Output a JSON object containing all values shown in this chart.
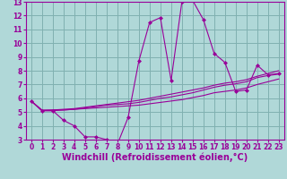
{
  "bg_color": "#b0d8d8",
  "grid_color": "#80b0b0",
  "line_color": "#990099",
  "marker_color": "#990099",
  "xlabel": "Windchill (Refroidissement éolien,°C)",
  "xlim": [
    -0.5,
    23.5
  ],
  "ylim": [
    3,
    13
  ],
  "xticks": [
    0,
    1,
    2,
    3,
    4,
    5,
    6,
    7,
    8,
    9,
    10,
    11,
    12,
    13,
    14,
    15,
    16,
    17,
    18,
    19,
    20,
    21,
    22,
    23
  ],
  "yticks": [
    3,
    4,
    5,
    6,
    7,
    8,
    9,
    10,
    11,
    12,
    13
  ],
  "line1_x": [
    0,
    1,
    2,
    3,
    4,
    5,
    6,
    7,
    8,
    9,
    10,
    11,
    12,
    13,
    14,
    15,
    16,
    17,
    18,
    19,
    20,
    21,
    22,
    23
  ],
  "line1_y": [
    5.8,
    5.1,
    5.1,
    4.4,
    4.0,
    3.2,
    3.2,
    3.0,
    2.65,
    4.6,
    8.7,
    11.5,
    11.85,
    7.3,
    13.0,
    13.1,
    11.7,
    9.25,
    8.6,
    6.5,
    6.6,
    8.4,
    7.7,
    7.8
  ],
  "line2_x": [
    0,
    1,
    2,
    3,
    4,
    5,
    6,
    7,
    8,
    9,
    10,
    11,
    12,
    13,
    14,
    15,
    16,
    17,
    18,
    19,
    20,
    21,
    22,
    23
  ],
  "line2_y": [
    5.8,
    5.1,
    5.15,
    5.15,
    5.2,
    5.25,
    5.3,
    5.35,
    5.4,
    5.45,
    5.5,
    5.6,
    5.7,
    5.8,
    5.9,
    6.05,
    6.2,
    6.4,
    6.5,
    6.6,
    6.75,
    7.0,
    7.2,
    7.4
  ],
  "line3_x": [
    0,
    1,
    2,
    3,
    4,
    5,
    6,
    7,
    8,
    9,
    10,
    11,
    12,
    13,
    14,
    15,
    16,
    17,
    18,
    19,
    20,
    21,
    22,
    23
  ],
  "line3_y": [
    5.8,
    5.15,
    5.15,
    5.2,
    5.25,
    5.35,
    5.45,
    5.55,
    5.65,
    5.75,
    5.85,
    6.0,
    6.15,
    6.3,
    6.45,
    6.6,
    6.75,
    6.95,
    7.1,
    7.2,
    7.35,
    7.6,
    7.8,
    8.0
  ],
  "line4_x": [
    0,
    1,
    2,
    3,
    4,
    5,
    6,
    7,
    8,
    9,
    10,
    11,
    12,
    13,
    14,
    15,
    16,
    17,
    18,
    19,
    20,
    21,
    22,
    23
  ],
  "line4_y": [
    5.8,
    5.1,
    5.1,
    5.15,
    5.2,
    5.3,
    5.4,
    5.5,
    5.55,
    5.6,
    5.7,
    5.85,
    6.0,
    6.1,
    6.25,
    6.4,
    6.6,
    6.8,
    6.95,
    7.05,
    7.2,
    7.5,
    7.65,
    7.75
  ],
  "tick_fontsize": 5.5,
  "label_fontsize": 7.0
}
